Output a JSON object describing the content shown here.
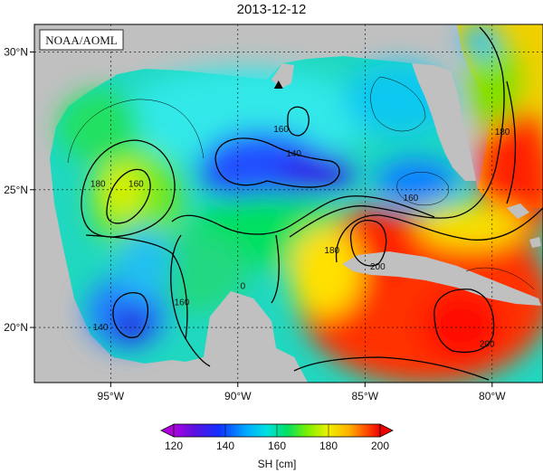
{
  "title": "2013-12-12",
  "credit": "NOAA/AOML",
  "map": {
    "lon_ticks": [
      {
        "lon": -95,
        "label": "95°W"
      },
      {
        "lon": -90,
        "label": "90°W"
      },
      {
        "lon": -85,
        "label": "85°W"
      },
      {
        "lon": -80,
        "label": "80°W"
      }
    ],
    "lat_ticks": [
      {
        "lat": 30,
        "label": "30°N"
      },
      {
        "lat": 25,
        "label": "25°N"
      },
      {
        "lat": 20,
        "label": "20°N"
      }
    ],
    "lon_range": [
      -98,
      -78
    ],
    "lat_range": [
      18,
      31
    ],
    "marker": {
      "lon": -88.4,
      "lat": 28.8,
      "shape": "triangle"
    },
    "contour_labels": [
      {
        "text": "180",
        "lon": -95.5,
        "lat": 25.2
      },
      {
        "text": "160",
        "lon": -94,
        "lat": 25.2
      },
      {
        "text": "160",
        "lon": -88.3,
        "lat": 27.2
      },
      {
        "text": "140",
        "lon": -87.8,
        "lat": 26.3
      },
      {
        "text": "160",
        "lon": -83.2,
        "lat": 24.7
      },
      {
        "text": "180",
        "lon": -79.6,
        "lat": 27.1
      },
      {
        "text": "180",
        "lon": -86.3,
        "lat": 22.8
      },
      {
        "text": "200",
        "lon": -84.5,
        "lat": 22.2
      },
      {
        "text": "160",
        "lon": -92.2,
        "lat": 20.9
      },
      {
        "text": "140",
        "lon": -95.4,
        "lat": 20.0
      },
      {
        "text": "200",
        "lon": -80.2,
        "lat": 19.4
      },
      {
        "text": "0",
        "lon": -89.8,
        "lat": 21.5
      }
    ]
  },
  "colorbar": {
    "label": "SH [cm]",
    "ticks": [
      "120",
      "140",
      "160",
      "180",
      "200"
    ],
    "colors": [
      "#b000e0",
      "#5a10e0",
      "#1030ff",
      "#00a8ff",
      "#00e0e0",
      "#00e060",
      "#80f000",
      "#f0f000",
      "#ffb000",
      "#ff5000",
      "#f00000"
    ]
  },
  "colors": {
    "land": "#c0c0c0",
    "contour": "#000000"
  }
}
